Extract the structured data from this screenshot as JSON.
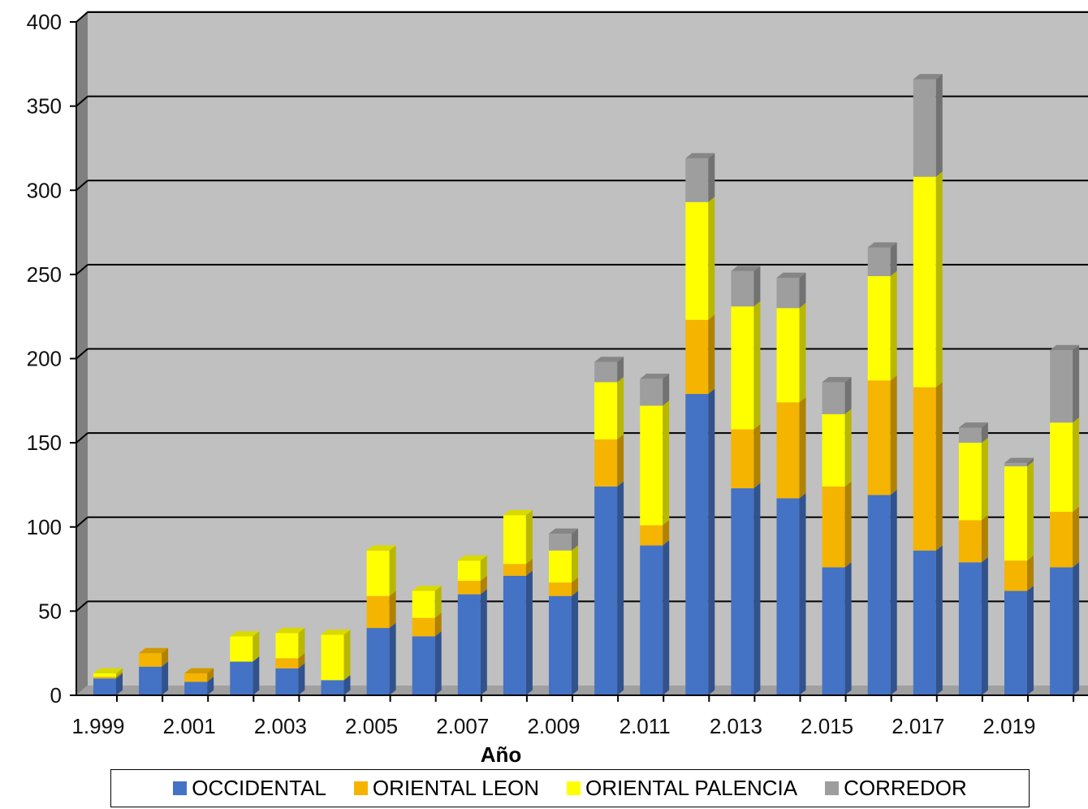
{
  "chart_data": {
    "type": "bar",
    "stacked": true,
    "three_d": true,
    "xlabel": "Año",
    "ylabel": "",
    "ylim": [
      0,
      400
    ],
    "yticks": [
      "0",
      "50",
      "100",
      "150",
      "200",
      "250",
      "300",
      "350",
      "400"
    ],
    "grid": true,
    "legend_position": "bottom",
    "categories": [
      "1.999",
      "2.000",
      "2.001",
      "2.002",
      "2.003",
      "2.004",
      "2.005",
      "2.006",
      "2.007",
      "2.008",
      "2.009",
      "2.010",
      "2.011",
      "2.012",
      "2.013",
      "2.014",
      "2.015",
      "2.016",
      "2.017",
      "2.018",
      "2.019",
      "2.020"
    ],
    "category_labels_shown": [
      "1.999",
      "",
      "2.001",
      "",
      "2.003",
      "",
      "2.005",
      "",
      "2.007",
      "",
      "2.009",
      "",
      "2.011",
      "",
      "2.013",
      "",
      "2.015",
      "",
      "2.017",
      "",
      "2.019",
      ""
    ],
    "series": [
      {
        "name": "OCCIDENTAL",
        "color": "#4472C4",
        "values": [
          10,
          17,
          8,
          20,
          16,
          9,
          40,
          35,
          60,
          71,
          59,
          124,
          89,
          179,
          123,
          117,
          76,
          119,
          86,
          79,
          62,
          76
        ]
      },
      {
        "name": "ORIENTAL LEON",
        "color": "#F5B400",
        "values": [
          1,
          8,
          5,
          0,
          6,
          0,
          19,
          11,
          8,
          7,
          8,
          28,
          12,
          44,
          35,
          57,
          48,
          68,
          97,
          25,
          18,
          33
        ]
      },
      {
        "name": "ORIENTAL PALENCIA",
        "color": "#FFFF00",
        "values": [
          2,
          0,
          0,
          15,
          15,
          27,
          27,
          16,
          12,
          29,
          19,
          34,
          71,
          70,
          73,
          56,
          43,
          62,
          125,
          46,
          56,
          53
        ]
      },
      {
        "name": "CORREDOR",
        "color": "#9E9E9E",
        "values": [
          0,
          0,
          0,
          0,
          0,
          0,
          0,
          0,
          0,
          0,
          10,
          12,
          16,
          26,
          21,
          18,
          19,
          17,
          58,
          9,
          2,
          43
        ]
      }
    ]
  }
}
